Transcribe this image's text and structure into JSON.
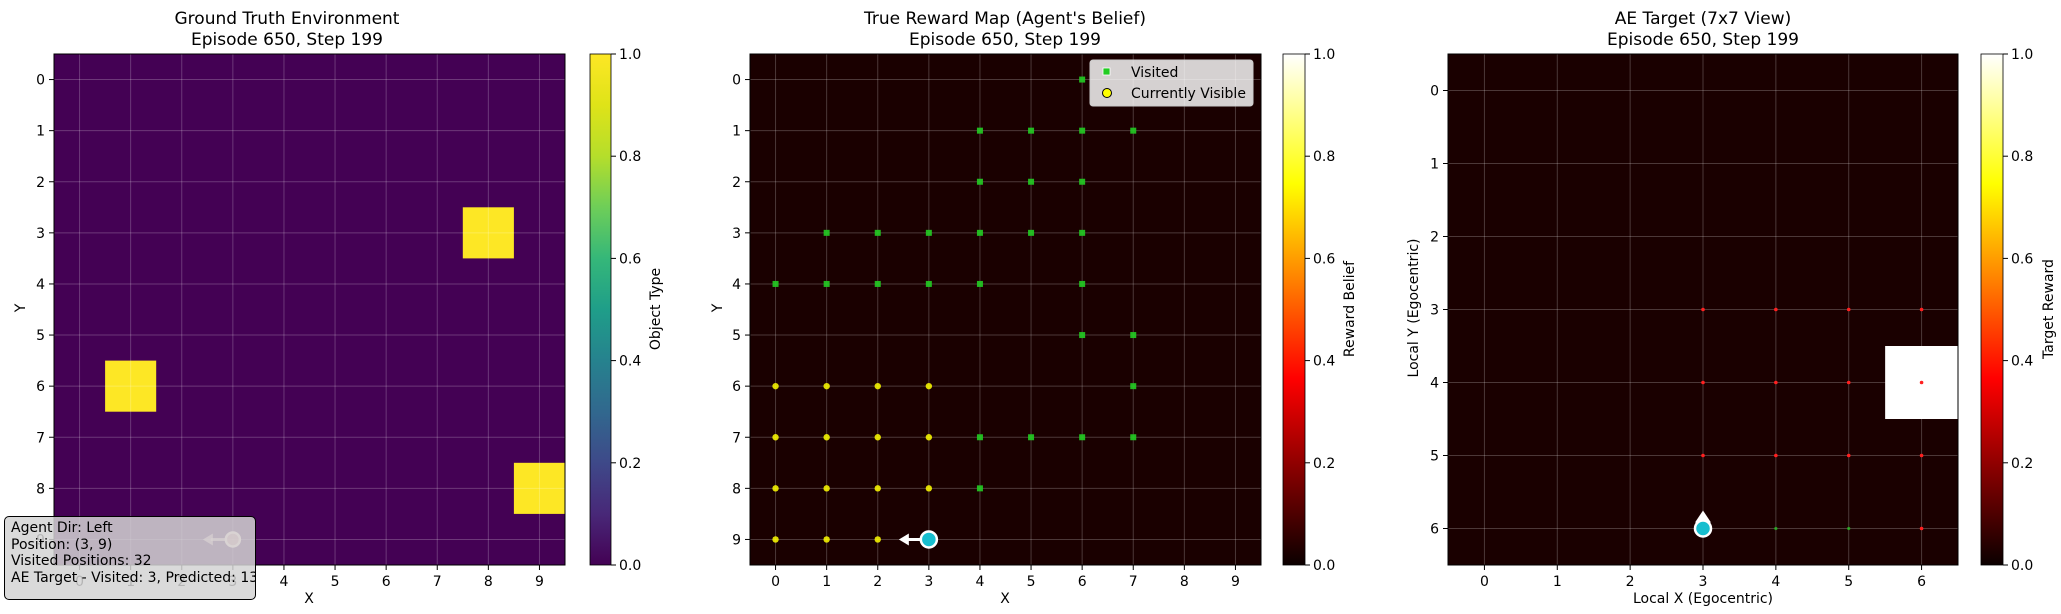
{
  "chart_data": [
    {
      "type": "heatmap",
      "title": "Ground Truth Environment\nEpisode 650, Step 199",
      "xlabel": "X",
      "ylabel": "Y",
      "grid_size": [
        10,
        10
      ],
      "x_ticks": [
        "0",
        "1",
        "2",
        "3",
        "4",
        "5",
        "6",
        "7",
        "8",
        "9"
      ],
      "y_ticks": [
        "0",
        "1",
        "2",
        "3",
        "4",
        "5",
        "6",
        "7",
        "8",
        "9"
      ],
      "background_value": 0.0,
      "cells": [
        {
          "x": 8,
          "y": 3,
          "value": 1.0
        },
        {
          "x": 1,
          "y": 6,
          "value": 1.0
        },
        {
          "x": 9,
          "y": 8,
          "value": 1.0
        }
      ],
      "agent": {
        "x": 3,
        "y": 9,
        "direction": "left"
      },
      "colorbar": {
        "label": "Object Type",
        "colormap": "viridis",
        "range": [
          0.0,
          1.0
        ],
        "ticks": [
          "0.0",
          "0.2",
          "0.4",
          "0.6",
          "0.8",
          "1.0"
        ]
      },
      "grid": true,
      "info_box": {
        "lines": [
          "Agent Dir: Left",
          "Position: (3, 9)",
          "Visited Positions: 32",
          "AE Target - Visited: 3, Predicted: 13"
        ]
      }
    },
    {
      "type": "heatmap",
      "title": "True Reward Map (Agent's Belief)\nEpisode 650, Step 199",
      "xlabel": "X",
      "ylabel": "Y",
      "grid_size": [
        10,
        10
      ],
      "x_ticks": [
        "0",
        "1",
        "2",
        "3",
        "4",
        "5",
        "6",
        "7",
        "8",
        "9"
      ],
      "y_ticks": [
        "0",
        "1",
        "2",
        "3",
        "4",
        "5",
        "6",
        "7",
        "8",
        "9"
      ],
      "background_value": 0.0,
      "visited": [
        [
          6,
          0
        ],
        [
          4,
          1
        ],
        [
          5,
          1
        ],
        [
          6,
          1
        ],
        [
          7,
          1
        ],
        [
          4,
          2
        ],
        [
          5,
          2
        ],
        [
          6,
          2
        ],
        [
          1,
          3
        ],
        [
          2,
          3
        ],
        [
          3,
          3
        ],
        [
          4,
          3
        ],
        [
          5,
          3
        ],
        [
          6,
          3
        ],
        [
          0,
          4
        ],
        [
          1,
          4
        ],
        [
          2,
          4
        ],
        [
          3,
          4
        ],
        [
          4,
          4
        ],
        [
          6,
          4
        ],
        [
          6,
          5
        ],
        [
          7,
          5
        ],
        [
          7,
          6
        ],
        [
          4,
          7
        ],
        [
          5,
          7
        ],
        [
          6,
          7
        ],
        [
          7,
          7
        ],
        [
          4,
          8
        ]
      ],
      "visible": [
        [
          0,
          6
        ],
        [
          1,
          6
        ],
        [
          2,
          6
        ],
        [
          3,
          6
        ],
        [
          0,
          7
        ],
        [
          1,
          7
        ],
        [
          2,
          7
        ],
        [
          3,
          7
        ],
        [
          0,
          8
        ],
        [
          1,
          8
        ],
        [
          2,
          8
        ],
        [
          3,
          8
        ],
        [
          0,
          9
        ],
        [
          1,
          9
        ],
        [
          2,
          9
        ]
      ],
      "agent": {
        "x": 3,
        "y": 9,
        "direction": "left"
      },
      "legend": {
        "placement": "top-right",
        "entries": [
          "Visited",
          "Currently Visible"
        ]
      },
      "colorbar": {
        "label": "Reward Belief",
        "colormap": "hot",
        "range": [
          0.0,
          1.0
        ],
        "ticks": [
          "0.0",
          "0.2",
          "0.4",
          "0.6",
          "0.8",
          "1.0"
        ]
      },
      "grid": true
    },
    {
      "type": "heatmap",
      "title": "AE Target (7x7 View)\nEpisode 650, Step 199",
      "xlabel": "Local X (Egocentric)",
      "ylabel": "Local Y (Egocentric)",
      "grid_size": [
        7,
        7
      ],
      "x_ticks": [
        "0",
        "1",
        "2",
        "3",
        "4",
        "5",
        "6"
      ],
      "y_ticks": [
        "0",
        "1",
        "2",
        "3",
        "4",
        "5",
        "6"
      ],
      "background_value": 0.0,
      "cells": [
        {
          "x": 6,
          "y": 4,
          "value": 1.0
        }
      ],
      "red_dots": [
        [
          3,
          3
        ],
        [
          4,
          3
        ],
        [
          5,
          3
        ],
        [
          6,
          3
        ],
        [
          3,
          4
        ],
        [
          4,
          4
        ],
        [
          5,
          4
        ],
        [
          6,
          4
        ],
        [
          3,
          5
        ],
        [
          4,
          5
        ],
        [
          5,
          5
        ],
        [
          6,
          5
        ],
        [
          6,
          6
        ]
      ],
      "green_dots": [
        [
          4,
          6
        ],
        [
          5,
          6
        ]
      ],
      "agent": {
        "x": 3,
        "y": 6,
        "direction": "up"
      },
      "colorbar": {
        "label": "Target Reward",
        "colormap": "hot",
        "range": [
          0.0,
          1.0
        ],
        "ticks": [
          "0.0",
          "0.2",
          "0.4",
          "0.6",
          "0.8",
          "1.0"
        ]
      },
      "grid": true
    }
  ],
  "colors": {
    "viridis_low": "#440154",
    "viridis_high": "#fde725",
    "hot_low": "#0b0000",
    "hot_high": "#ffffff",
    "visited_marker": "#22cc22",
    "visible_marker": "#ffff00",
    "agent": "#17becf",
    "agent_faded": "#f4a8a8",
    "target_dot": "#ff2020"
  }
}
